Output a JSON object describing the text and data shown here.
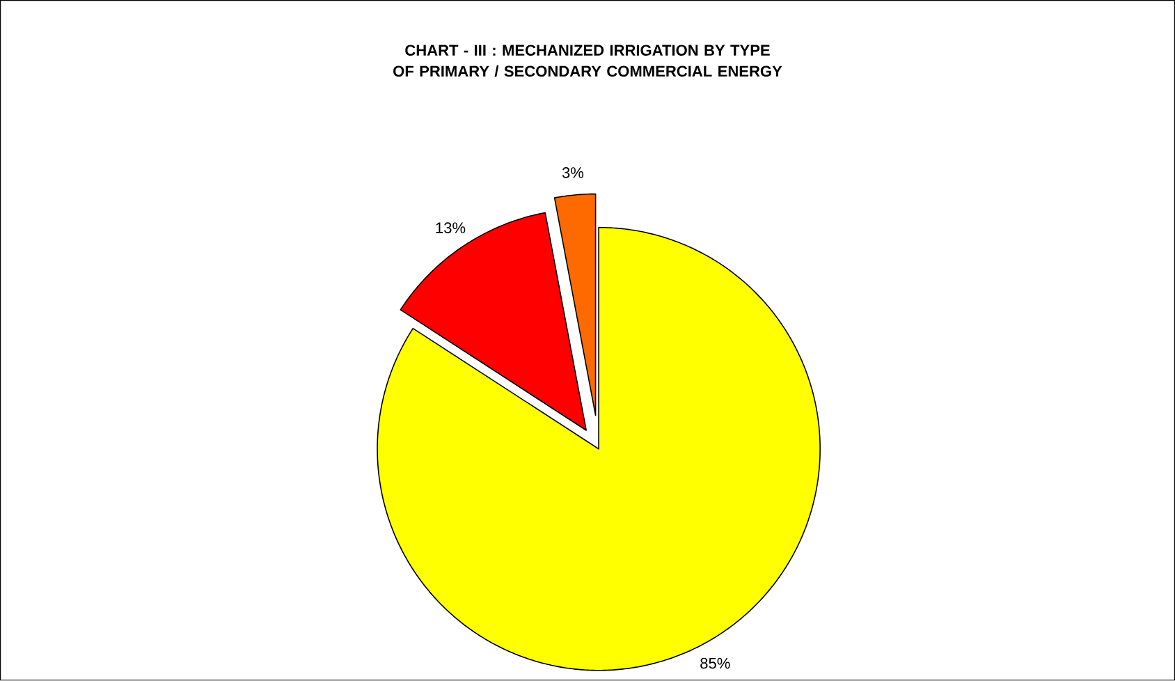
{
  "chart_data": {
    "type": "pie",
    "title": "CHART - III :  MECHANIZED IRRIGATION BY TYPE OF PRIMARY / SECONDARY COMMERCIAL ENERGY",
    "categories": [
      null,
      null,
      null
    ],
    "values": [
      85,
      13,
      3
    ],
    "colors": [
      "#ffff00",
      "#ff0000",
      "#ff6a00"
    ],
    "value_labels": [
      "85%",
      "13%",
      "3%"
    ],
    "legend": false
  }
}
